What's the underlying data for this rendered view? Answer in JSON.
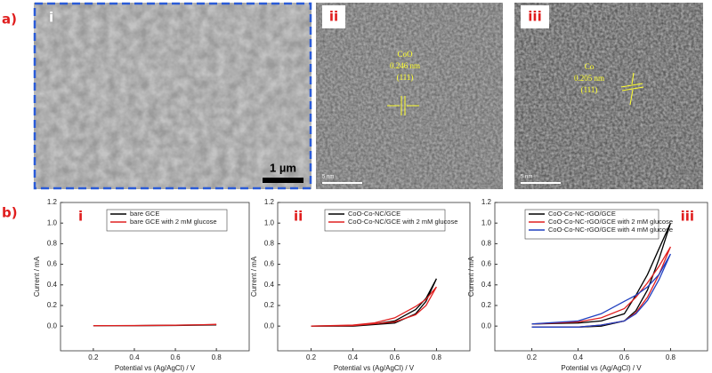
{
  "figure_labels": [
    "a)",
    "b)"
  ],
  "images": [
    {
      "label": "i",
      "scale_bar": "1 µm"
    },
    {
      "label": "ii",
      "scale_bar": "5 nm",
      "annotation": [
        "CoO",
        "0.246 nm",
        "(111)"
      ]
    },
    {
      "label": "iii",
      "scale_bar": "5 nm",
      "annotation": [
        "Co",
        "0.205 nm",
        "(111)"
      ]
    }
  ],
  "chart_data": [
    {
      "type": "line",
      "panel_label": "i",
      "xlabel": "Potential vs (Ag/AgCl) / V",
      "ylabel": "Current / mA",
      "xlim": [
        0.04,
        0.96
      ],
      "ylim": [
        -0.24,
        1.2
      ],
      "xticks": [
        0.2,
        0.4,
        0.6,
        0.8
      ],
      "yticks": [
        {
          "value": 0,
          "label": "0.0"
        },
        0.2,
        0.4,
        0.6,
        0.8,
        {
          "value": 1,
          "label": "1.0"
        },
        1.2
      ],
      "series": [
        {
          "name": "bare GCE",
          "color": "#000000",
          "x": [
            0.2,
            0.4,
            0.6,
            0.8,
            0.6,
            0.4,
            0.2
          ],
          "values": [
            0.003,
            0.004,
            0.006,
            0.012,
            0.008,
            0.005,
            0.003
          ]
        },
        {
          "name": "bare GCE with 2 mM glucose",
          "color": "#e02020",
          "x": [
            0.2,
            0.4,
            0.6,
            0.8,
            0.6,
            0.4,
            0.2
          ],
          "values": [
            0.004,
            0.005,
            0.008,
            0.015,
            0.009,
            0.006,
            0.004
          ]
        }
      ]
    },
    {
      "type": "line",
      "panel_label": "ii",
      "xlabel": "Potential vs (Ag/AgCl) / V",
      "ylabel": "Current / mA",
      "xlim": [
        0.04,
        0.96
      ],
      "ylim": [
        -0.24,
        1.2
      ],
      "xticks": [
        0.2,
        0.4,
        0.6,
        0.8
      ],
      "yticks": [
        {
          "value": 0,
          "label": "0.0"
        },
        0.2,
        0.4,
        0.6,
        0.8,
        {
          "value": 1,
          "label": "1.0"
        },
        1.2
      ],
      "series": [
        {
          "name": "CoO-Co-NC/GCE",
          "color": "#000000",
          "x": [
            0.2,
            0.4,
            0.5,
            0.6,
            0.7,
            0.75,
            0.8,
            0.75,
            0.7,
            0.6,
            0.4,
            0.2
          ],
          "values": [
            0.0,
            0.005,
            0.02,
            0.05,
            0.16,
            0.27,
            0.46,
            0.24,
            0.12,
            0.03,
            0.0,
            0.0
          ]
        },
        {
          "name": "CoO-Co-NC/GCE with 2 mM glucose",
          "color": "#e02020",
          "x": [
            0.2,
            0.4,
            0.5,
            0.6,
            0.7,
            0.75,
            0.8,
            0.75,
            0.7,
            0.6,
            0.4,
            0.2
          ],
          "values": [
            0.0,
            0.01,
            0.03,
            0.08,
            0.19,
            0.26,
            0.38,
            0.2,
            0.11,
            0.04,
            0.005,
            0.0
          ]
        }
      ]
    },
    {
      "type": "line",
      "panel_label": "iii",
      "xlabel": "Potential vs (Ag/AgCl) / V",
      "ylabel": "Current / mA",
      "xlim": [
        0.04,
        0.96
      ],
      "ylim": [
        -0.24,
        1.2
      ],
      "xticks": [
        0.2,
        0.4,
        0.6,
        0.8
      ],
      "yticks": [
        {
          "value": 0,
          "label": "0.0"
        },
        0.2,
        0.4,
        0.6,
        0.8,
        {
          "value": 1,
          "label": "1.0"
        },
        1.2
      ],
      "series": [
        {
          "name": "CoO-Co-NC-rGO/GCE",
          "color": "#000000",
          "x": [
            0.2,
            0.4,
            0.5,
            0.6,
            0.65,
            0.7,
            0.75,
            0.8,
            0.75,
            0.7,
            0.65,
            0.6,
            0.5,
            0.4,
            0.2
          ],
          "values": [
            0.02,
            0.03,
            0.05,
            0.12,
            0.3,
            0.5,
            0.75,
            1.0,
            0.65,
            0.35,
            0.15,
            0.05,
            0.0,
            -0.01,
            -0.01
          ]
        },
        {
          "name": "CoO-Co-NC-rGO/GCE with 2 mM glucose",
          "color": "#e02020",
          "x": [
            0.2,
            0.4,
            0.5,
            0.6,
            0.65,
            0.7,
            0.75,
            0.8,
            0.75,
            0.7,
            0.65,
            0.6,
            0.5,
            0.4,
            0.2
          ],
          "values": [
            0.02,
            0.04,
            0.08,
            0.17,
            0.28,
            0.42,
            0.58,
            0.77,
            0.5,
            0.28,
            0.13,
            0.05,
            0.01,
            -0.01,
            -0.01
          ]
        },
        {
          "name": "CoO-Co-NC-rGO/GCE with 4 mM glucose",
          "color": "#2040c0",
          "x": [
            0.2,
            0.4,
            0.5,
            0.6,
            0.65,
            0.7,
            0.75,
            0.8,
            0.75,
            0.7,
            0.65,
            0.6,
            0.5,
            0.4,
            0.2
          ],
          "values": [
            0.02,
            0.05,
            0.12,
            0.24,
            0.3,
            0.38,
            0.5,
            0.7,
            0.45,
            0.25,
            0.12,
            0.05,
            0.01,
            -0.01,
            -0.01
          ]
        }
      ]
    }
  ]
}
